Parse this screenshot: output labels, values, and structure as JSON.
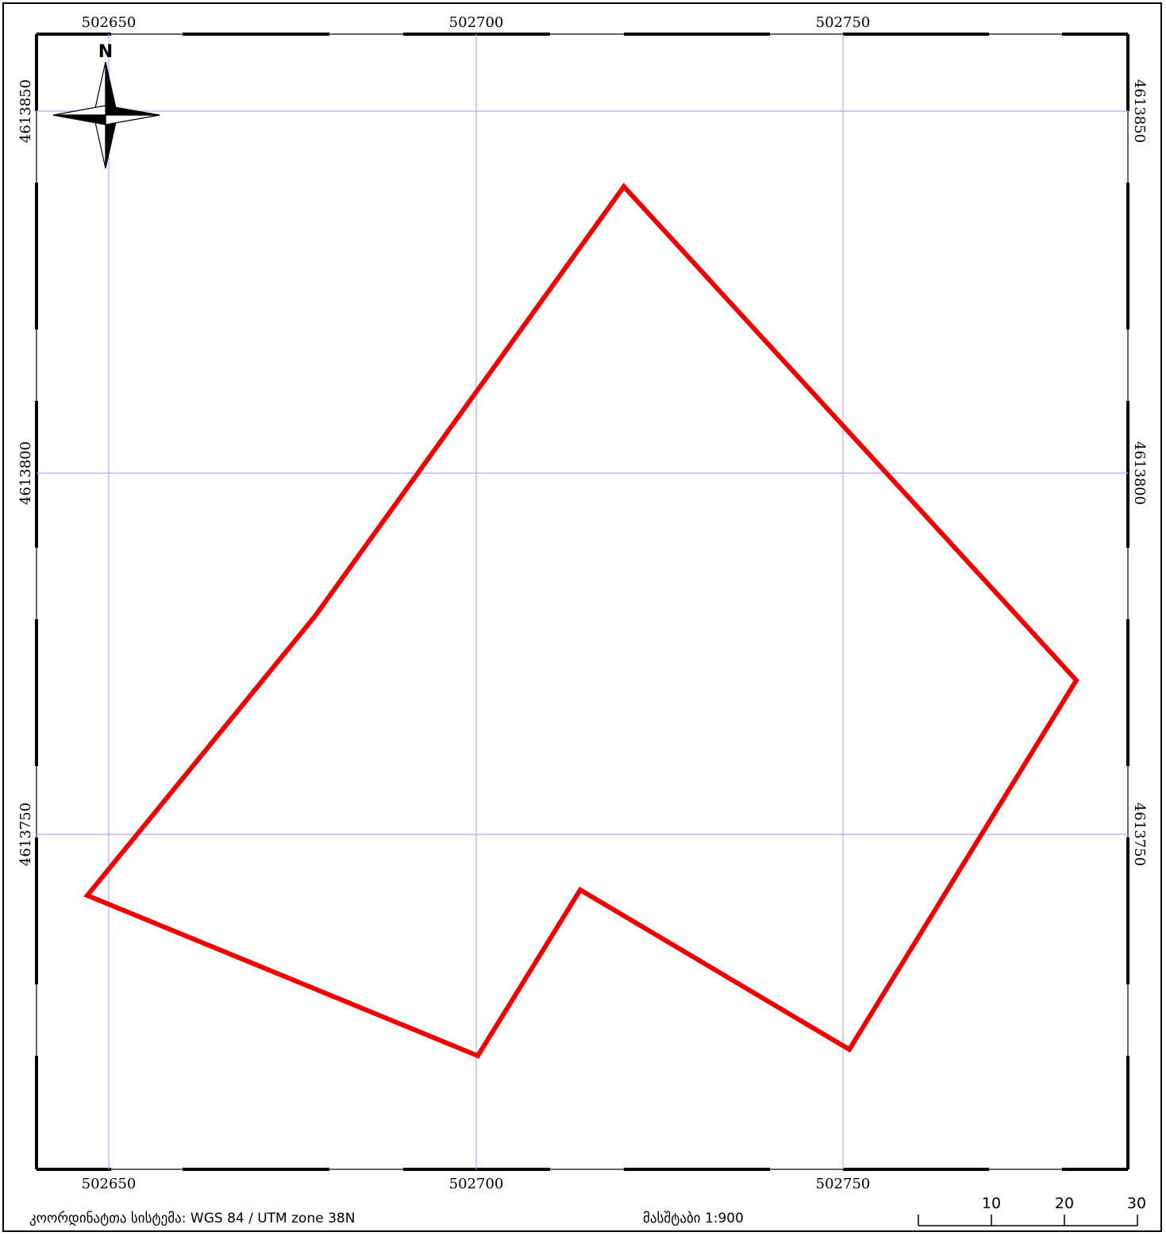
{
  "map": {
    "grid_x_labels": [
      "502650",
      "502700",
      "502750"
    ],
    "grid_y_labels": [
      "4613850",
      "4613800",
      "4613750"
    ],
    "grid_color": "#aab0f0",
    "boundary_color": "#ee0000"
  },
  "north_arrow": {
    "letter": "N",
    "icon": "compass-rose-icon"
  },
  "footer": {
    "coordinate_system": "კოორდინატთა სისტემა: WGS 84 / UTM zone 38N",
    "scale": "მასშტაბი 1:900"
  },
  "scale_bar": {
    "labels": [
      "10",
      "20",
      "30"
    ]
  }
}
